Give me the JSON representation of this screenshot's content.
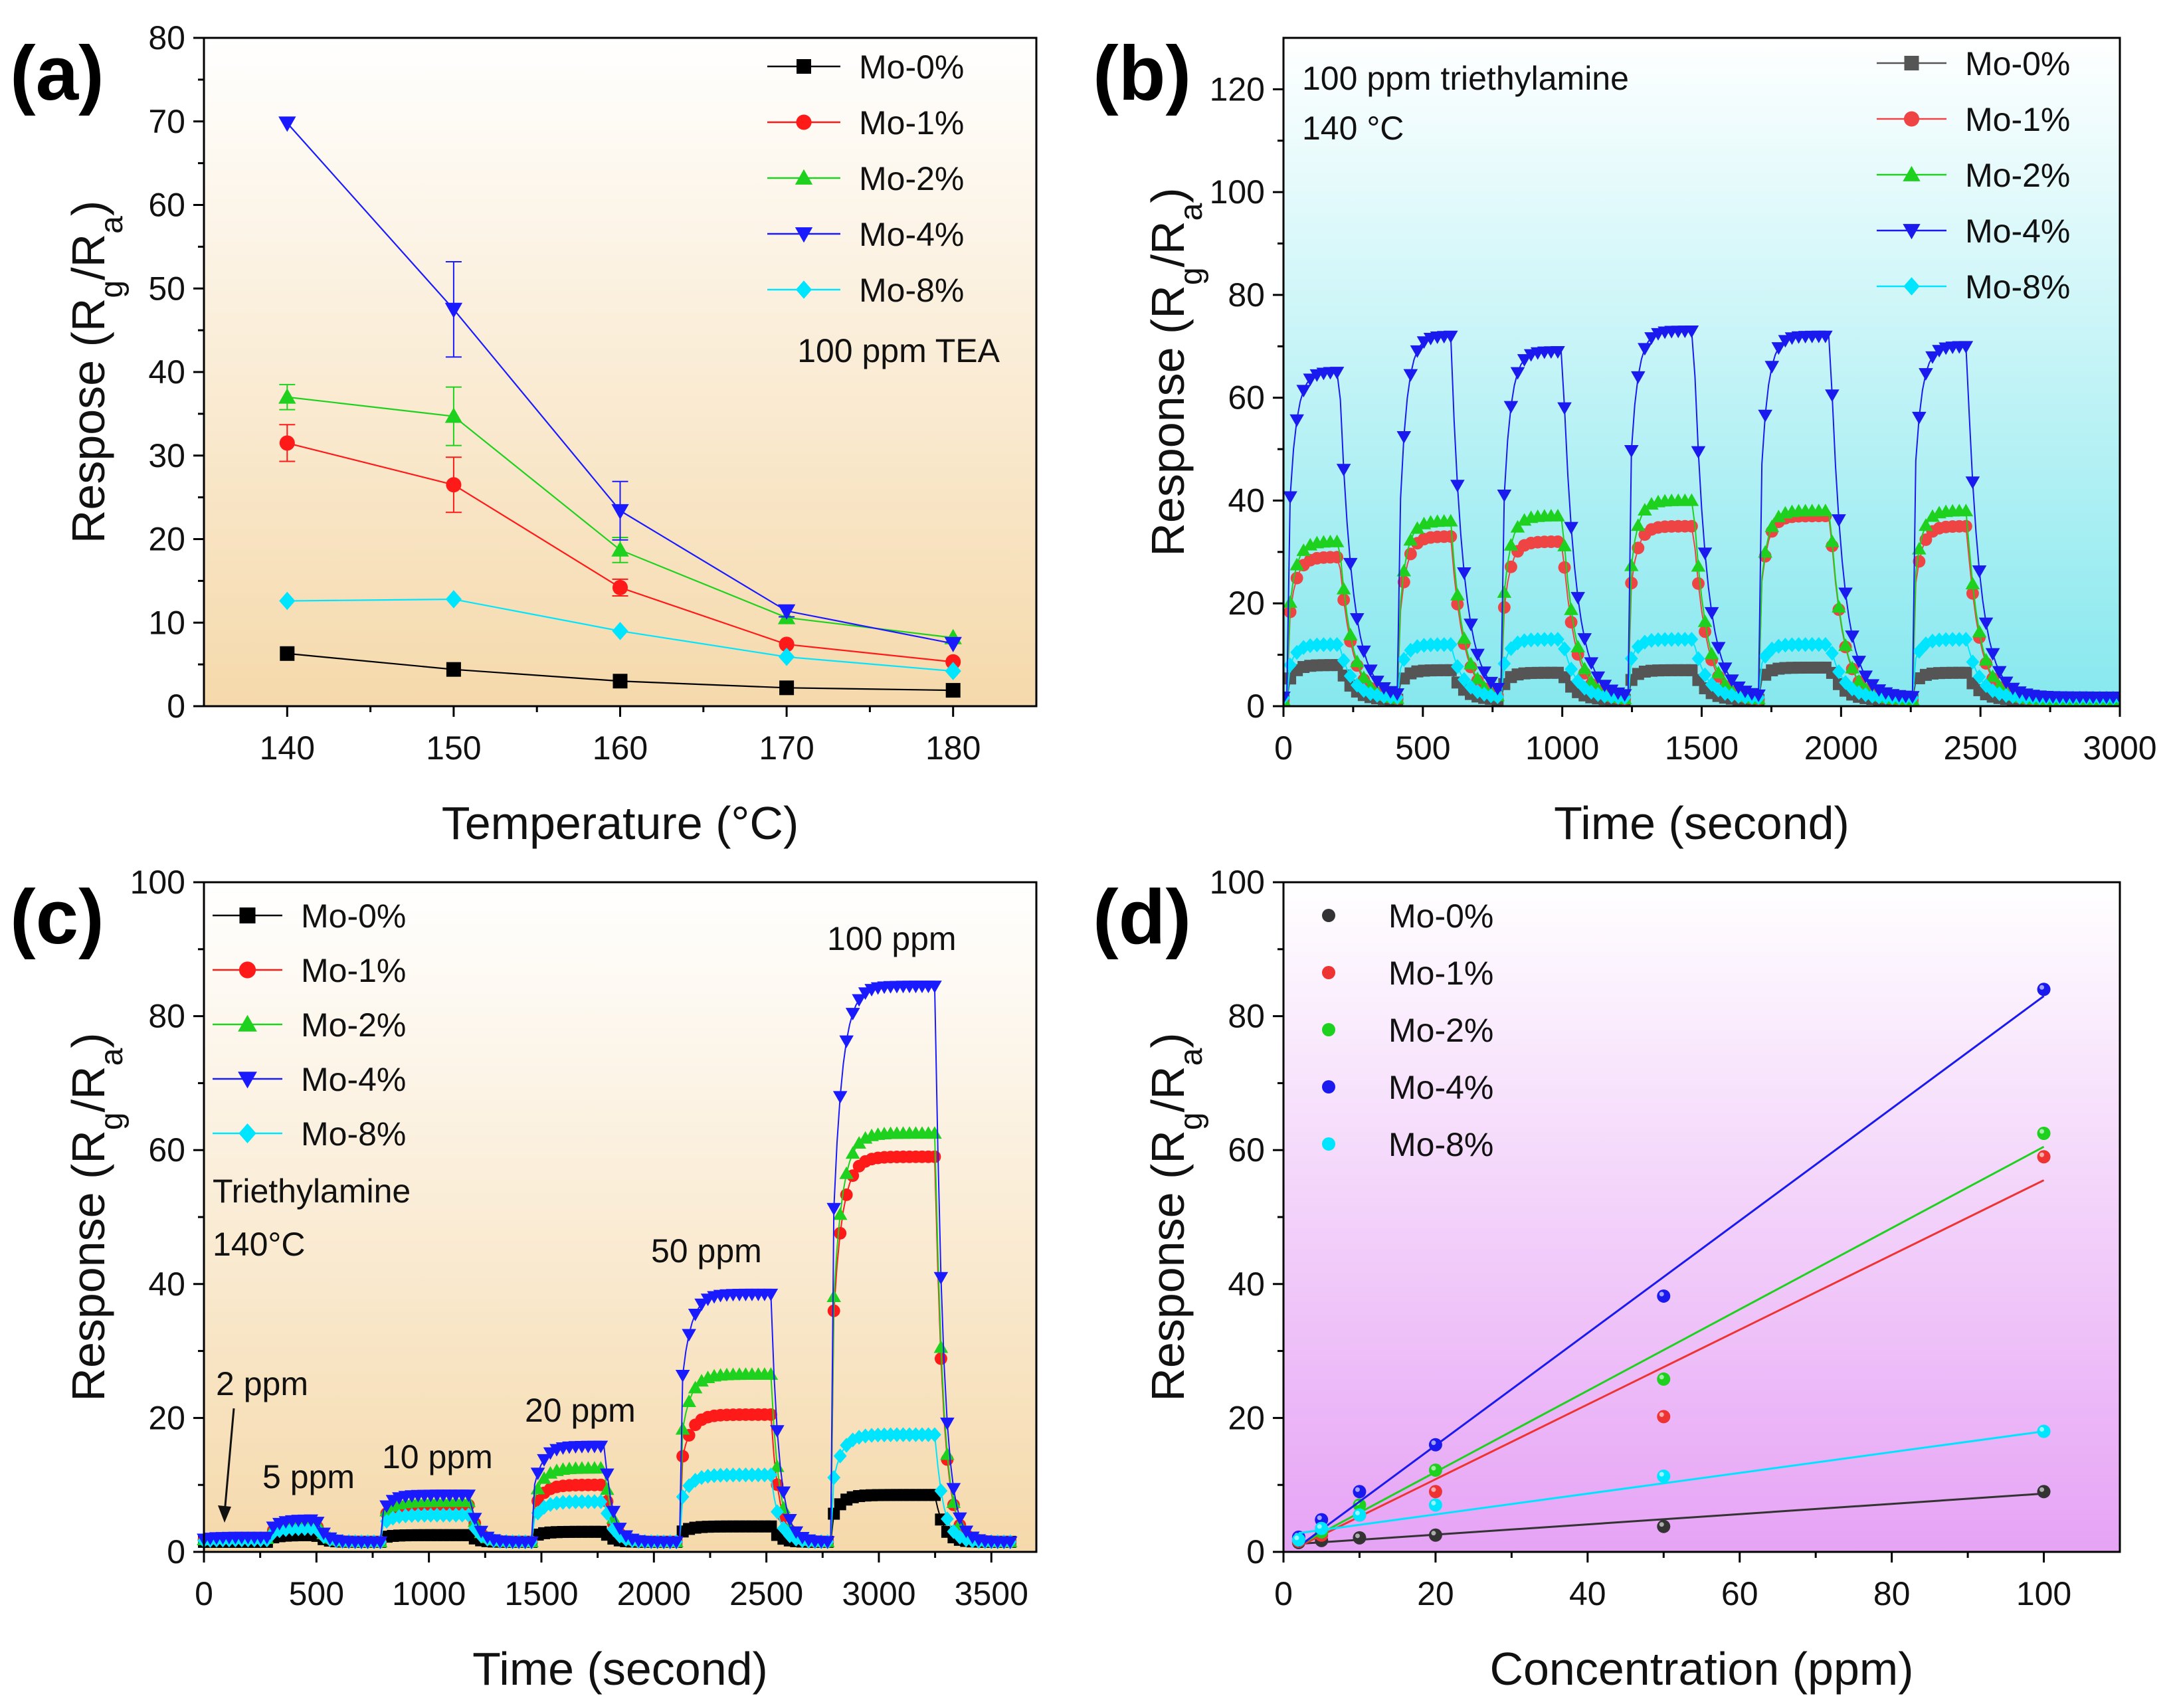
{
  "chart_data": [
    {
      "panel": "(a)",
      "type": "line",
      "xlabel": "Temperature (°C)",
      "ylabel": "Respose (R_g/R_a)",
      "x": [
        140,
        150,
        160,
        170,
        180
      ],
      "xlim": [
        135,
        185
      ],
      "ylim": [
        0,
        80
      ],
      "xticks": [
        "140",
        "150",
        "160",
        "170",
        "180"
      ],
      "yticks": [
        "0",
        "10",
        "20",
        "30",
        "40",
        "50",
        "60",
        "70",
        "80"
      ],
      "annotation": "100 ppm TEA",
      "background": [
        "#ffffff",
        "#f5d9ab"
      ],
      "series": [
        {
          "name": "Mo-0%",
          "color": "#000000",
          "marker": "square",
          "values": [
            6.3,
            4.4,
            3.0,
            2.2,
            1.9
          ],
          "errors": [
            0,
            0,
            0,
            0,
            0
          ]
        },
        {
          "name": "Mo-1%",
          "color": "#ff1a1a",
          "marker": "circle",
          "values": [
            31.5,
            26.5,
            14.2,
            7.4,
            5.3
          ],
          "errors": [
            2.2,
            3.3,
            1.0,
            0,
            0
          ]
        },
        {
          "name": "Mo-2%",
          "color": "#1fd11f",
          "marker": "triangle-up",
          "values": [
            37.0,
            34.7,
            18.7,
            10.6,
            8.2
          ],
          "errors": [
            1.5,
            3.5,
            1.5,
            0,
            0
          ]
        },
        {
          "name": "Mo-4%",
          "color": "#1a1aff",
          "marker": "triangle-down",
          "values": [
            69.8,
            47.5,
            23.4,
            11.4,
            7.5
          ],
          "errors": [
            0,
            5.7,
            3.5,
            0.7,
            0
          ]
        },
        {
          "name": "Mo-8%",
          "color": "#00e5ff",
          "marker": "diamond",
          "values": [
            12.6,
            12.8,
            9.0,
            5.9,
            4.2
          ],
          "errors": [
            0,
            0,
            0,
            0,
            0
          ]
        }
      ]
    },
    {
      "panel": "(b)",
      "type": "line",
      "xlabel": "Time (second)",
      "ylabel": "Response (R_g/R_a)",
      "xlim": [
        0,
        3000
      ],
      "ylim": [
        0,
        130
      ],
      "xticks": [
        "0",
        "500",
        "1000",
        "1500",
        "2000",
        "2500",
        "3000"
      ],
      "yticks": [
        "0",
        "20",
        "40",
        "60",
        "80",
        "100",
        "120"
      ],
      "annotation": [
        "100 ppm triethylamine",
        "140 °C"
      ],
      "background": [
        "#ffffff",
        "#86e8ee"
      ],
      "cycles": [
        [
          20,
          200
        ],
        [
          420,
          600
        ],
        [
          790,
          1000
        ],
        [
          1240,
          1470
        ],
        [
          1710,
          1960
        ],
        [
          2260,
          2450
        ]
      ],
      "series": [
        {
          "name": "Mo-0%",
          "color": "#555555",
          "marker": "square",
          "plateaus": [
            8,
            7,
            6.5,
            7,
            7.5,
            6.5
          ]
        },
        {
          "name": "Mo-1%",
          "color": "#ee4444",
          "marker": "circle",
          "plateaus": [
            29,
            33,
            32,
            35,
            37,
            35
          ]
        },
        {
          "name": "Mo-2%",
          "color": "#1fd11f",
          "marker": "triangle-up",
          "plateaus": [
            32,
            36,
            37,
            40,
            38,
            38
          ]
        },
        {
          "name": "Mo-4%",
          "color": "#1a1aee",
          "marker": "triangle-down",
          "plateaus": [
            65,
            72,
            69,
            73,
            72,
            70
          ]
        },
        {
          "name": "Mo-8%",
          "color": "#00e5ff",
          "marker": "diamond",
          "plateaus": [
            12,
            12,
            13,
            13,
            12,
            13
          ]
        }
      ]
    },
    {
      "panel": "(c)",
      "type": "line",
      "xlabel": "Time (second)",
      "ylabel": "Response (R_g/R_a)",
      "xlim": [
        0,
        3700
      ],
      "ylim": [
        0,
        100
      ],
      "xticks": [
        "0",
        "500",
        "1000",
        "1500",
        "2000",
        "2500",
        "3000",
        "3500"
      ],
      "yticks": [
        "0",
        "20",
        "40",
        "60",
        "80",
        "100"
      ],
      "annotation": [
        "Triethylamine",
        "140°C"
      ],
      "concentration_labels": [
        "2 ppm",
        "5 ppm",
        "10 ppm",
        "20 ppm",
        "50 ppm",
        "100 ppm"
      ],
      "background": [
        "#ffffff",
        "#f5d9ab"
      ],
      "steps": [
        [
          0,
          280
        ],
        [
          300,
          500
        ],
        [
          790,
          1180
        ],
        [
          1470,
          1780
        ],
        [
          2120,
          2520
        ],
        [
          2800,
          3250
        ]
      ],
      "series": [
        {
          "name": "Mo-0%",
          "color": "#000000",
          "marker": "square",
          "plateaus": [
            1.5,
            2.5,
            2.5,
            3.0,
            3.8,
            8.5
          ]
        },
        {
          "name": "Mo-1%",
          "color": "#ff1a1a",
          "marker": "circle",
          "plateaus": [
            2.0,
            4.0,
            7.0,
            10.0,
            20.5,
            59
          ]
        },
        {
          "name": "Mo-2%",
          "color": "#1fd11f",
          "marker": "triangle-up",
          "plateaus": [
            2.0,
            4.5,
            7.5,
            12.5,
            26.5,
            62.5
          ]
        },
        {
          "name": "Mo-4%",
          "color": "#1a1aff",
          "marker": "triangle-down",
          "plateaus": [
            2.2,
            4.8,
            8.5,
            15.8,
            38.5,
            84.5
          ]
        },
        {
          "name": "Mo-8%",
          "color": "#00e5ff",
          "marker": "diamond",
          "plateaus": [
            1.8,
            3.5,
            5.5,
            7.5,
            11.5,
            17.5
          ]
        }
      ]
    },
    {
      "panel": "(d)",
      "type": "scatter",
      "xlabel": "Concentration (ppm)",
      "ylabel": "Response (R_g/R_a)",
      "x": [
        2,
        5,
        10,
        20,
        50,
        100
      ],
      "xlim": [
        0,
        110
      ],
      "ylim": [
        0,
        100
      ],
      "xticks": [
        "0",
        "20",
        "40",
        "60",
        "80",
        "100"
      ],
      "yticks": [
        "0",
        "20",
        "40",
        "60",
        "80",
        "100"
      ],
      "background": [
        "#ffffff",
        "#e6a3f5"
      ],
      "series": [
        {
          "name": "Mo-0%",
          "color": "#333333",
          "values": [
            1.4,
            1.7,
            2.1,
            2.5,
            3.8,
            9.0
          ],
          "fit": [
            [
              2,
              1.2
            ],
            [
              100,
              8.7
            ]
          ]
        },
        {
          "name": "Mo-1%",
          "color": "#ee3333",
          "values": [
            1.6,
            2.5,
            5.5,
            9.0,
            20.2,
            59.0
          ],
          "fit": [
            [
              2,
              0.8
            ],
            [
              100,
              55.5
            ]
          ]
        },
        {
          "name": "Mo-2%",
          "color": "#1fd11f",
          "values": [
            1.8,
            3.0,
            7.0,
            12.2,
            25.8,
            62.5
          ],
          "fit": [
            [
              2,
              1.0
            ],
            [
              100,
              60.5
            ]
          ]
        },
        {
          "name": "Mo-4%",
          "color": "#1a1aee",
          "values": [
            2.2,
            4.8,
            9.0,
            16.0,
            38.2,
            84.0
          ],
          "fit": [
            [
              2,
              0.8
            ],
            [
              100,
              83.0
            ]
          ]
        },
        {
          "name": "Mo-8%",
          "color": "#00e5ff",
          "values": [
            1.8,
            3.5,
            5.5,
            7.0,
            11.3,
            18.0
          ],
          "fit": [
            [
              2,
              2.8
            ],
            [
              100,
              18.0
            ]
          ]
        }
      ]
    }
  ]
}
